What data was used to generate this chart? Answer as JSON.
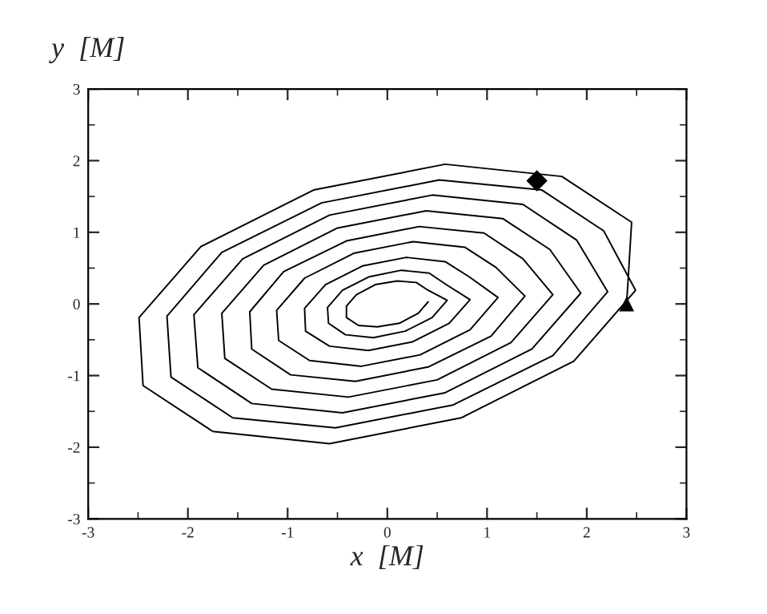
{
  "chart_data": {
    "type": "line",
    "xlabel": "x  [M]",
    "ylabel": "y  [M]",
    "xlim": [
      -3,
      3
    ],
    "ylim": [
      -3,
      3
    ],
    "xticks": [
      -3,
      -2,
      -1,
      0,
      1,
      2,
      3
    ],
    "yticks": [
      -3,
      -2,
      -1,
      0,
      1,
      2,
      3
    ],
    "grid": false,
    "legend": false,
    "series": [
      {
        "color": "#000000",
        "marker": "none",
        "line_style": "solid",
        "x": [
          2.4,
          2.45,
          1.75,
          0.58,
          -0.74,
          -1.87,
          -2.49,
          -2.45,
          -1.75,
          -0.58,
          0.74,
          1.87,
          2.49,
          2.17,
          1.55,
          0.52,
          -0.66,
          -1.66,
          -2.21,
          -2.17,
          -1.55,
          -0.52,
          0.66,
          1.66,
          2.21,
          1.9,
          1.36,
          0.45,
          -0.58,
          -1.45,
          -1.94,
          -1.9,
          -1.36,
          -0.45,
          0.58,
          1.45,
          1.94,
          1.63,
          1.16,
          0.39,
          -0.5,
          -1.24,
          -1.66,
          -1.63,
          -1.16,
          -0.39,
          0.5,
          1.24,
          1.66,
          1.36,
          0.97,
          0.32,
          -0.41,
          -1.04,
          -1.38,
          -1.36,
          -0.97,
          -0.32,
          0.41,
          1.04,
          1.38,
          1.09,
          0.78,
          0.26,
          -0.33,
          -0.83,
          -1.11,
          -1.09,
          -0.78,
          -0.26,
          0.33,
          0.83,
          1.11,
          0.82,
          0.58,
          0.19,
          -0.25,
          -0.62,
          -0.83,
          -0.82,
          -0.58,
          -0.19,
          0.25,
          0.62,
          0.83,
          0.59,
          0.42,
          0.14,
          -0.18,
          -0.45,
          -0.6,
          -0.59,
          -0.42,
          -0.14,
          0.18,
          0.45,
          0.6,
          0.41,
          0.29,
          0.1,
          -0.12,
          -0.31,
          -0.41,
          -0.41,
          -0.29,
          -0.1,
          0.12,
          0.31,
          0.41
        ],
        "values": [
          0.0,
          1.14,
          1.78,
          1.95,
          1.59,
          0.8,
          -0.19,
          -1.14,
          -1.78,
          -1.95,
          -1.59,
          -0.8,
          0.19,
          1.02,
          1.59,
          1.73,
          1.41,
          0.72,
          -0.17,
          -1.02,
          -1.59,
          -1.73,
          -1.41,
          -0.72,
          0.17,
          0.89,
          1.39,
          1.52,
          1.24,
          0.63,
          -0.15,
          -0.89,
          -1.39,
          -1.52,
          -1.24,
          -0.63,
          0.15,
          0.76,
          1.19,
          1.3,
          1.06,
          0.54,
          -0.13,
          -0.76,
          -1.19,
          -1.3,
          -1.06,
          -0.54,
          0.13,
          0.63,
          0.99,
          1.08,
          0.88,
          0.45,
          -0.11,
          -0.63,
          -0.99,
          -1.08,
          -0.88,
          -0.45,
          0.11,
          0.51,
          0.79,
          0.87,
          0.71,
          0.36,
          -0.09,
          -0.51,
          -0.79,
          -0.87,
          -0.71,
          -0.36,
          0.09,
          0.38,
          0.59,
          0.65,
          0.53,
          0.27,
          -0.06,
          -0.38,
          -0.59,
          -0.65,
          -0.53,
          -0.27,
          0.06,
          0.27,
          0.43,
          0.47,
          0.38,
          0.19,
          -0.05,
          -0.27,
          -0.43,
          -0.47,
          -0.38,
          -0.19,
          0.05,
          0.19,
          0.3,
          0.32,
          0.27,
          0.13,
          -0.03,
          -0.19,
          -0.3,
          -0.32,
          -0.27,
          -0.13,
          0.03
        ]
      },
      {
        "type": "scatter",
        "color": "#000000",
        "marker": "triangle",
        "x": [
          2.4
        ],
        "values": [
          0.0
        ]
      },
      {
        "type": "scatter",
        "color": "#000000",
        "marker": "diamond",
        "x": [
          1.5
        ],
        "values": [
          1.72
        ]
      }
    ]
  }
}
